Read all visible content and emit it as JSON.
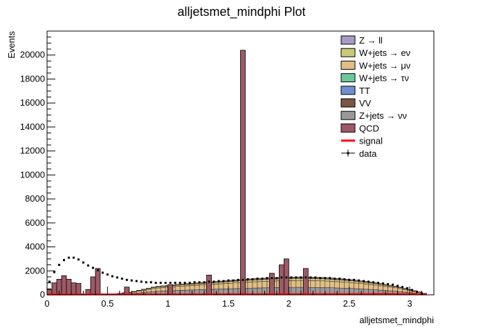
{
  "chart_data": {
    "type": "bar",
    "title": "alljetsmet_mindphi Plot",
    "xlabel": "alljetsmet_mindphi",
    "ylabel": "Events",
    "xlim": [
      0,
      3.2
    ],
    "ylim": [
      0,
      22000
    ],
    "xticks": [
      "0",
      "0.5",
      "1",
      "1.5",
      "2",
      "2.5",
      "3"
    ],
    "yticks": [
      "0",
      "2000",
      "4000",
      "6000",
      "8000",
      "10000",
      "12000",
      "14000",
      "16000",
      "18000",
      "20000"
    ],
    "stacked": true,
    "bin_width": 0.04,
    "grid": false,
    "legend_position": "top-right",
    "legend": [
      {
        "label": "Z → ll",
        "kind": "fill",
        "color": "#a79bc6"
      },
      {
        "label": "W+jets → eν",
        "kind": "fill",
        "color": "#c9c97a"
      },
      {
        "label": "W+jets → μν",
        "kind": "fill",
        "color": "#e2bd86"
      },
      {
        "label": "W+jets → τν",
        "kind": "fill",
        "color": "#6dc79b"
      },
      {
        "label": "TT",
        "kind": "fill",
        "color": "#6f8fd0"
      },
      {
        "label": "VV",
        "kind": "fill",
        "color": "#7b5643"
      },
      {
        "label": "Z+jets → νν",
        "kind": "fill",
        "color": "#999999"
      },
      {
        "label": "QCD",
        "kind": "fill",
        "color": "#9c5a66"
      },
      {
        "label": "signal",
        "kind": "line",
        "color": "#ff0000"
      },
      {
        "label": "data",
        "kind": "marker",
        "color": "#000000"
      }
    ],
    "qcd_spikes": [
      {
        "x": 0.02,
        "y": 450
      },
      {
        "x": 0.06,
        "y": 1000
      },
      {
        "x": 0.1,
        "y": 1300
      },
      {
        "x": 0.14,
        "y": 1600
      },
      {
        "x": 0.18,
        "y": 1300
      },
      {
        "x": 0.22,
        "y": 1000
      },
      {
        "x": 0.26,
        "y": 950
      },
      {
        "x": 0.34,
        "y": 450
      },
      {
        "x": 0.38,
        "y": 1500
      },
      {
        "x": 0.42,
        "y": 2200
      },
      {
        "x": 0.66,
        "y": 650
      },
      {
        "x": 1.02,
        "y": 850
      },
      {
        "x": 1.34,
        "y": 1650
      },
      {
        "x": 1.62,
        "y": 20400
      },
      {
        "x": 1.86,
        "y": 1800
      },
      {
        "x": 1.94,
        "y": 2500
      },
      {
        "x": 1.98,
        "y": 3000
      },
      {
        "x": 2.14,
        "y": 2200
      }
    ],
    "mc_total": [
      {
        "x": 0.5,
        "y": 0
      },
      {
        "x": 0.7,
        "y": 250
      },
      {
        "x": 0.9,
        "y": 700
      },
      {
        "x": 1.1,
        "y": 900
      },
      {
        "x": 1.3,
        "y": 1050
      },
      {
        "x": 1.5,
        "y": 1200
      },
      {
        "x": 1.7,
        "y": 1350
      },
      {
        "x": 1.9,
        "y": 1450
      },
      {
        "x": 2.1,
        "y": 1500
      },
      {
        "x": 2.3,
        "y": 1450
      },
      {
        "x": 2.5,
        "y": 1300
      },
      {
        "x": 2.7,
        "y": 1050
      },
      {
        "x": 2.9,
        "y": 700
      },
      {
        "x": 3.0,
        "y": 450
      },
      {
        "x": 3.1,
        "y": 200
      },
      {
        "x": 3.16,
        "y": 0
      }
    ],
    "data_points": [
      {
        "x": 0.02,
        "y": 1100
      },
      {
        "x": 0.06,
        "y": 1900
      },
      {
        "x": 0.1,
        "y": 2500
      },
      {
        "x": 0.14,
        "y": 2900
      },
      {
        "x": 0.18,
        "y": 3100
      },
      {
        "x": 0.22,
        "y": 3100
      },
      {
        "x": 0.26,
        "y": 2950
      },
      {
        "x": 0.3,
        "y": 2700
      },
      {
        "x": 0.34,
        "y": 2450
      },
      {
        "x": 0.38,
        "y": 2250
      },
      {
        "x": 0.42,
        "y": 2050
      },
      {
        "x": 0.46,
        "y": 1850
      },
      {
        "x": 0.5,
        "y": 1700
      },
      {
        "x": 0.54,
        "y": 1550
      },
      {
        "x": 0.58,
        "y": 1450
      },
      {
        "x": 0.62,
        "y": 1350
      },
      {
        "x": 0.66,
        "y": 1250
      },
      {
        "x": 0.7,
        "y": 1200
      },
      {
        "x": 0.74,
        "y": 1150
      },
      {
        "x": 0.78,
        "y": 1100
      },
      {
        "x": 0.82,
        "y": 1050
      },
      {
        "x": 0.86,
        "y": 1050
      },
      {
        "x": 0.9,
        "y": 1000
      },
      {
        "x": 0.94,
        "y": 1000
      },
      {
        "x": 0.98,
        "y": 1000
      },
      {
        "x": 1.02,
        "y": 1000
      },
      {
        "x": 1.06,
        "y": 1000
      },
      {
        "x": 1.1,
        "y": 1000
      },
      {
        "x": 1.14,
        "y": 1000
      },
      {
        "x": 1.18,
        "y": 1000
      },
      {
        "x": 1.22,
        "y": 1050
      },
      {
        "x": 1.26,
        "y": 1050
      },
      {
        "x": 1.3,
        "y": 1050
      },
      {
        "x": 1.34,
        "y": 1100
      },
      {
        "x": 1.38,
        "y": 1100
      },
      {
        "x": 1.42,
        "y": 1150
      },
      {
        "x": 1.46,
        "y": 1150
      },
      {
        "x": 1.5,
        "y": 1200
      },
      {
        "x": 1.54,
        "y": 1200
      },
      {
        "x": 1.58,
        "y": 1250
      },
      {
        "x": 1.62,
        "y": 1250
      },
      {
        "x": 1.66,
        "y": 1300
      },
      {
        "x": 1.7,
        "y": 1300
      },
      {
        "x": 1.74,
        "y": 1350
      },
      {
        "x": 1.78,
        "y": 1350
      },
      {
        "x": 1.82,
        "y": 1400
      },
      {
        "x": 1.86,
        "y": 1400
      },
      {
        "x": 1.9,
        "y": 1400
      },
      {
        "x": 1.94,
        "y": 1450
      },
      {
        "x": 1.98,
        "y": 1450
      },
      {
        "x": 2.02,
        "y": 1450
      },
      {
        "x": 2.06,
        "y": 1450
      },
      {
        "x": 2.1,
        "y": 1450
      },
      {
        "x": 2.14,
        "y": 1450
      },
      {
        "x": 2.18,
        "y": 1450
      },
      {
        "x": 2.22,
        "y": 1450
      },
      {
        "x": 2.26,
        "y": 1400
      },
      {
        "x": 2.3,
        "y": 1400
      },
      {
        "x": 2.34,
        "y": 1400
      },
      {
        "x": 2.38,
        "y": 1350
      },
      {
        "x": 2.42,
        "y": 1350
      },
      {
        "x": 2.46,
        "y": 1300
      },
      {
        "x": 2.5,
        "y": 1250
      },
      {
        "x": 2.54,
        "y": 1250
      },
      {
        "x": 2.58,
        "y": 1200
      },
      {
        "x": 2.62,
        "y": 1150
      },
      {
        "x": 2.66,
        "y": 1100
      },
      {
        "x": 2.7,
        "y": 1050
      },
      {
        "x": 2.74,
        "y": 1000
      },
      {
        "x": 2.78,
        "y": 950
      },
      {
        "x": 2.82,
        "y": 900
      },
      {
        "x": 2.86,
        "y": 850
      },
      {
        "x": 2.9,
        "y": 750
      },
      {
        "x": 2.94,
        "y": 650
      },
      {
        "x": 2.98,
        "y": 550
      },
      {
        "x": 3.02,
        "y": 400
      },
      {
        "x": 3.06,
        "y": 250
      },
      {
        "x": 3.1,
        "y": 120
      }
    ],
    "signal_line": [
      {
        "x": 0.0,
        "y": 30
      },
      {
        "x": 1.0,
        "y": 40
      },
      {
        "x": 2.0,
        "y": 60
      },
      {
        "x": 2.8,
        "y": 70
      },
      {
        "x": 3.14,
        "y": 40
      }
    ]
  }
}
